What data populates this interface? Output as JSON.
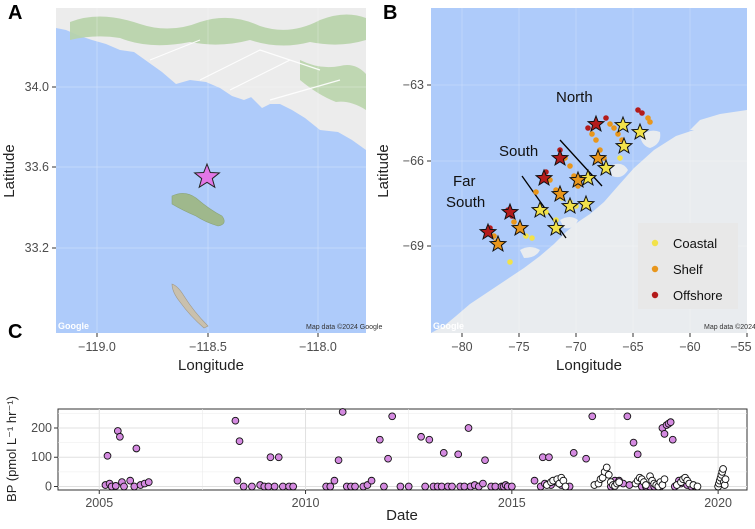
{
  "panels": {
    "a": {
      "letter": "A",
      "xlabel": "Longitude",
      "ylabel": "Latitude",
      "xticks": [
        "−119.0",
        "−118.5",
        "−118.0"
      ],
      "yticks": [
        "34.0",
        "33.6",
        "33.2"
      ],
      "attribution": "Map data ©2024 Google",
      "google_logo": "Google",
      "marker_color": "#e277e6"
    },
    "b": {
      "letter": "B",
      "xlabel": "Longitude",
      "ylabel": "Latitude",
      "xticks": [
        "−80",
        "−75",
        "−70",
        "−65",
        "−60",
        "−55"
      ],
      "yticks": [
        "−63",
        "−66",
        "−69"
      ],
      "regions": [
        "North",
        "South",
        "Far",
        "South"
      ],
      "legend": [
        {
          "label": "Coastal",
          "color": "#f2e24a"
        },
        {
          "label": "Shelf",
          "color": "#e8961c"
        },
        {
          "label": "Offshore",
          "color": "#b31b1b"
        }
      ],
      "attribution": "Map data ©2024",
      "google_logo": "Google"
    },
    "c": {
      "letter": "C",
      "xlabel": "Date",
      "ylabel": "BP (pmol L⁻¹ hr⁻¹)",
      "xticks": [
        "2005",
        "2010",
        "2015",
        "2020"
      ],
      "yticks": [
        "200",
        "100",
        "0"
      ]
    }
  },
  "chart_data": {
    "type": "scatter",
    "xlabel": "Date",
    "ylabel": "BP (pmol L⁻¹ hr⁻¹)",
    "xlim": [
      2004.0,
      2020.7
    ],
    "ylim": [
      -12,
      265
    ],
    "grid": true,
    "series": [
      {
        "color": "#d48ae0",
        "points": [
          [
            2005.15,
            5
          ],
          [
            2005.2,
            105
          ],
          [
            2005.25,
            10
          ],
          [
            2005.3,
            0
          ],
          [
            2005.4,
            2
          ],
          [
            2005.45,
            190
          ],
          [
            2005.5,
            170
          ],
          [
            2005.55,
            15
          ],
          [
            2005.6,
            0
          ],
          [
            2005.75,
            20
          ],
          [
            2005.85,
            0
          ],
          [
            2005.9,
            130
          ],
          [
            2006.0,
            5
          ],
          [
            2006.1,
            10
          ],
          [
            2006.2,
            15
          ],
          [
            2008.3,
            225
          ],
          [
            2008.35,
            20
          ],
          [
            2008.4,
            155
          ],
          [
            2008.5,
            0
          ],
          [
            2008.7,
            0
          ],
          [
            2008.9,
            5
          ],
          [
            2009.0,
            0
          ],
          [
            2009.1,
            0
          ],
          [
            2009.15,
            100
          ],
          [
            2009.25,
            0
          ],
          [
            2009.35,
            100
          ],
          [
            2009.45,
            0
          ],
          [
            2009.6,
            0
          ],
          [
            2009.7,
            0
          ],
          [
            2010.5,
            0
          ],
          [
            2010.6,
            0
          ],
          [
            2010.7,
            20
          ],
          [
            2010.8,
            90
          ],
          [
            2010.9,
            255
          ],
          [
            2011.0,
            0
          ],
          [
            2011.1,
            0
          ],
          [
            2011.2,
            0
          ],
          [
            2011.4,
            0
          ],
          [
            2011.5,
            5
          ],
          [
            2011.6,
            20
          ],
          [
            2011.8,
            160
          ],
          [
            2011.9,
            0
          ],
          [
            2012.0,
            95
          ],
          [
            2012.1,
            240
          ],
          [
            2012.3,
            0
          ],
          [
            2012.5,
            0
          ],
          [
            2012.8,
            170
          ],
          [
            2012.9,
            0
          ],
          [
            2013.0,
            160
          ],
          [
            2013.1,
            0
          ],
          [
            2013.2,
            0
          ],
          [
            2013.3,
            0
          ],
          [
            2013.35,
            115
          ],
          [
            2013.45,
            0
          ],
          [
            2013.55,
            0
          ],
          [
            2013.7,
            110
          ],
          [
            2013.75,
            0
          ],
          [
            2013.85,
            0
          ],
          [
            2013.95,
            200
          ],
          [
            2014.0,
            0
          ],
          [
            2014.1,
            5
          ],
          [
            2014.2,
            0
          ],
          [
            2014.3,
            10
          ],
          [
            2014.35,
            90
          ],
          [
            2014.5,
            0
          ],
          [
            2014.6,
            0
          ],
          [
            2014.75,
            0
          ],
          [
            2014.8,
            0
          ],
          [
            2014.85,
            5
          ],
          [
            2014.9,
            0
          ],
          [
            2015.0,
            0
          ],
          [
            2015.55,
            20
          ],
          [
            2015.7,
            0
          ],
          [
            2015.75,
            100
          ],
          [
            2015.8,
            10
          ],
          [
            2015.9,
            100
          ],
          [
            2015.95,
            5
          ],
          [
            2016.1,
            15
          ],
          [
            2016.2,
            5
          ],
          [
            2016.4,
            0
          ],
          [
            2016.5,
            115
          ],
          [
            2016.8,
            95
          ],
          [
            2016.95,
            240
          ],
          [
            2017.4,
            0
          ],
          [
            2017.5,
            20
          ],
          [
            2017.6,
            20
          ],
          [
            2017.7,
            10
          ],
          [
            2017.8,
            240
          ],
          [
            2017.85,
            5
          ],
          [
            2017.95,
            150
          ],
          [
            2018.05,
            110
          ],
          [
            2018.15,
            0
          ],
          [
            2018.25,
            0
          ],
          [
            2018.35,
            0
          ],
          [
            2018.45,
            0
          ],
          [
            2018.6,
            0
          ],
          [
            2018.65,
            200
          ],
          [
            2018.7,
            180
          ],
          [
            2018.75,
            210
          ],
          [
            2018.8,
            215
          ],
          [
            2018.85,
            220
          ],
          [
            2018.9,
            160
          ],
          [
            2018.95,
            0
          ],
          [
            2019.05,
            20
          ],
          [
            2019.1,
            10
          ],
          [
            2019.25,
            5
          ],
          [
            2019.35,
            0
          ],
          [
            2019.45,
            0
          ]
        ]
      },
      {
        "color": "#ffffff",
        "points": [
          [
            2015.85,
            5
          ],
          [
            2015.95,
            15
          ],
          [
            2016.0,
            20
          ],
          [
            2016.1,
            25
          ],
          [
            2016.15,
            10
          ],
          [
            2016.2,
            30
          ],
          [
            2016.25,
            20
          ],
          [
            2016.3,
            0
          ],
          [
            2017.0,
            5
          ],
          [
            2017.1,
            10
          ],
          [
            2017.15,
            25
          ],
          [
            2017.2,
            30
          ],
          [
            2017.25,
            50
          ],
          [
            2017.3,
            65
          ],
          [
            2017.35,
            40
          ],
          [
            2017.4,
            15
          ],
          [
            2017.45,
            5
          ],
          [
            2017.5,
            2
          ],
          [
            2017.55,
            10
          ],
          [
            2017.6,
            15
          ],
          [
            2018.0,
            10
          ],
          [
            2018.05,
            20
          ],
          [
            2018.1,
            30
          ],
          [
            2018.15,
            25
          ],
          [
            2018.2,
            15
          ],
          [
            2018.25,
            5
          ],
          [
            2018.35,
            35
          ],
          [
            2018.4,
            20
          ],
          [
            2018.45,
            10
          ],
          [
            2018.5,
            5
          ],
          [
            2018.55,
            0
          ],
          [
            2018.6,
            15
          ],
          [
            2018.65,
            5
          ],
          [
            2018.7,
            25
          ],
          [
            2019.0,
            5
          ],
          [
            2019.1,
            15
          ],
          [
            2019.15,
            25
          ],
          [
            2019.2,
            30
          ],
          [
            2019.25,
            20
          ],
          [
            2019.3,
            10
          ],
          [
            2019.4,
            5
          ],
          [
            2019.5,
            0
          ],
          [
            2020.0,
            0
          ],
          [
            2020.02,
            10
          ],
          [
            2020.04,
            20
          ],
          [
            2020.06,
            30
          ],
          [
            2020.08,
            40
          ],
          [
            2020.1,
            50
          ],
          [
            2020.12,
            60
          ],
          [
            2020.14,
            15
          ],
          [
            2020.16,
            5
          ],
          [
            2020.18,
            25
          ]
        ]
      }
    ]
  }
}
